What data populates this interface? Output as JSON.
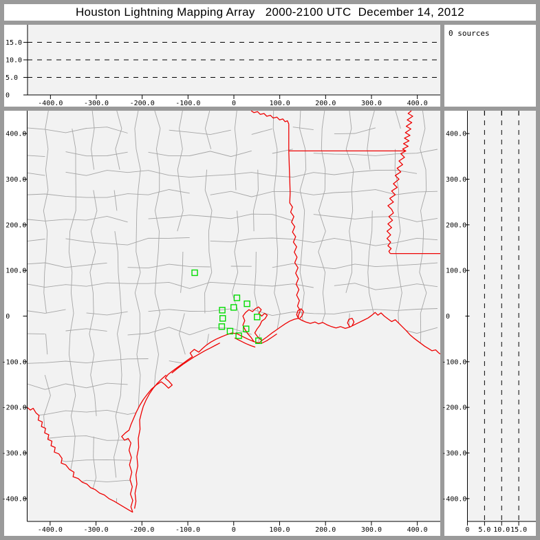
{
  "title": "Houston Lightning Mapping Array   2000-2100 UTC  December 14, 2012",
  "colors": {
    "frame": "#9a9a9a",
    "panel_bg": "#ffffff",
    "plot_bg": "#f2f2f2",
    "axis": "#000000",
    "county_line": "#a5a5a5",
    "state_border": "#ee0000",
    "station": "#00dd00"
  },
  "sources_panel": {
    "label": "0 sources"
  },
  "alt_top_panel": {
    "x_range": [
      -450,
      450
    ],
    "alt_range": [
      0,
      20
    ],
    "dashed_levels": [
      5,
      10,
      15
    ],
    "alt_ticks": {
      "values": [
        0,
        5,
        10,
        15
      ],
      "labels": [
        "0",
        "5.0",
        "10.0",
        "15.0"
      ]
    },
    "x_ticks": {
      "values": [
        -400,
        -300,
        -200,
        -100,
        0,
        100,
        200,
        300,
        400
      ],
      "labels": [
        "-400.0",
        "-300.0",
        "-200.0",
        "-100.0",
        "0",
        "100.0",
        "200.0",
        "300.0",
        "400.0"
      ]
    }
  },
  "alt_right_panel": {
    "alt_range": [
      0,
      20
    ],
    "y_range": [
      -450,
      450
    ],
    "dashed_levels": [
      5,
      10,
      15
    ],
    "alt_ticks": {
      "values": [
        0,
        5,
        10,
        15
      ],
      "labels": [
        "0",
        "5.0",
        "10.0",
        "15.0"
      ]
    },
    "y_ticks": {
      "values": [
        400,
        300,
        200,
        100,
        0,
        -100,
        -200,
        -300,
        -400
      ],
      "labels": [
        "400.0",
        "300.0",
        "200.0",
        "100.0",
        "0",
        "-100.0",
        "-200.0",
        "-300.0",
        "-400.0"
      ]
    }
  },
  "map_panel": {
    "x_range": [
      -450,
      450
    ],
    "y_range": [
      -450,
      450
    ],
    "x_ticks": {
      "values": [
        -400,
        -300,
        -200,
        -100,
        0,
        100,
        200,
        300,
        400
      ],
      "labels": [
        "-400.0",
        "-300.0",
        "-200.0",
        "-100.0",
        "0",
        "100.0",
        "200.0",
        "300.0",
        "400.0"
      ]
    },
    "y_ticks": {
      "values": [
        400,
        300,
        200,
        100,
        0,
        -100,
        -200,
        -300,
        -400
      ],
      "labels": [
        "400.0",
        "300.0",
        "200.0",
        "100.0",
        "0",
        "-100.0",
        "-200.0",
        "-300.0",
        "-400.0"
      ]
    },
    "stations": [
      [
        -85,
        95
      ],
      [
        7,
        40
      ],
      [
        29,
        27
      ],
      [
        0,
        19
      ],
      [
        -25,
        13
      ],
      [
        -24,
        -5
      ],
      [
        51,
        -2
      ],
      [
        -26,
        -23
      ],
      [
        27,
        -28
      ],
      [
        -8,
        -33
      ],
      [
        11,
        -43
      ],
      [
        54,
        -54
      ]
    ],
    "counties": {
      "spacing": 50,
      "step": 45,
      "jitter": 9,
      "skip": 0.13,
      "seed": 20121214
    },
    "geo": {
      "rio_grande": [
        [
          -450,
          -200
        ],
        [
          -443,
          -206
        ],
        [
          -437,
          -202
        ],
        [
          -431,
          -212
        ],
        [
          -424,
          -218
        ],
        [
          -426,
          -228
        ],
        [
          -417,
          -232
        ],
        [
          -419,
          -242
        ],
        [
          -410,
          -246
        ],
        [
          -412,
          -256
        ],
        [
          -403,
          -260
        ],
        [
          -405,
          -270
        ],
        [
          -396,
          -274
        ],
        [
          -398,
          -284
        ],
        [
          -389,
          -288
        ],
        [
          -391,
          -298
        ],
        [
          -381,
          -302
        ],
        [
          -374,
          -312
        ],
        [
          -376,
          -322
        ],
        [
          -366,
          -326
        ],
        [
          -358,
          -336
        ],
        [
          -348,
          -342
        ],
        [
          -350,
          -352
        ],
        [
          -339,
          -356
        ],
        [
          -330,
          -364
        ],
        [
          -320,
          -368
        ],
        [
          -312,
          -376
        ],
        [
          -302,
          -380
        ],
        [
          -292,
          -388
        ],
        [
          -282,
          -392
        ],
        [
          -272,
          -400
        ],
        [
          -260,
          -406
        ],
        [
          -250,
          -412
        ],
        [
          -240,
          -418
        ],
        [
          -230,
          -424
        ],
        [
          -220,
          -430
        ]
      ],
      "gulf_coast": [
        [
          -220,
          -430
        ],
        [
          -224,
          -418
        ],
        [
          -220,
          -404
        ],
        [
          -225,
          -390
        ],
        [
          -221,
          -374
        ],
        [
          -226,
          -358
        ],
        [
          -222,
          -342
        ],
        [
          -227,
          -326
        ],
        [
          -223,
          -310
        ],
        [
          -228,
          -294
        ],
        [
          -224,
          -278
        ],
        [
          -230,
          -268
        ],
        [
          -238,
          -272
        ],
        [
          -244,
          -264
        ],
        [
          -236,
          -256
        ],
        [
          -228,
          -250
        ],
        [
          -224,
          -238
        ],
        [
          -218,
          -224
        ],
        [
          -212,
          -210
        ],
        [
          -205,
          -196
        ],
        [
          -197,
          -183
        ],
        [
          -188,
          -171
        ],
        [
          -179,
          -160
        ],
        [
          -169,
          -151
        ],
        [
          -158,
          -144
        ],
        [
          -150,
          -150
        ],
        [
          -142,
          -158
        ],
        [
          -134,
          -151
        ],
        [
          -141,
          -143
        ],
        [
          -149,
          -136
        ],
        [
          -143,
          -128
        ],
        [
          -133,
          -120
        ],
        [
          -122,
          -112
        ],
        [
          -111,
          -104
        ],
        [
          -100,
          -96
        ],
        [
          -90,
          -89
        ],
        [
          -95,
          -81
        ],
        [
          -86,
          -73
        ],
        [
          -76,
          -79
        ],
        [
          -68,
          -71
        ],
        [
          -60,
          -64
        ],
        [
          -50,
          -57
        ],
        [
          -39,
          -51
        ],
        [
          -28,
          -46
        ],
        [
          -16,
          -41
        ],
        [
          -4,
          -37
        ],
        [
          8,
          -39
        ],
        [
          20,
          -45
        ],
        [
          32,
          -51
        ],
        [
          44,
          -56
        ],
        [
          55,
          -59
        ],
        [
          62,
          -53
        ],
        [
          72,
          -46
        ],
        [
          82,
          -38
        ],
        [
          92,
          -31
        ],
        [
          102,
          -24
        ],
        [
          112,
          -17
        ],
        [
          122,
          -11
        ],
        [
          132,
          -7
        ],
        [
          141,
          -5
        ],
        [
          148,
          -9
        ],
        [
          157,
          -13
        ],
        [
          167,
          -16
        ],
        [
          177,
          -13
        ],
        [
          185,
          -17
        ],
        [
          194,
          -14
        ],
        [
          203,
          -19
        ],
        [
          213,
          -23
        ],
        [
          223,
          -26
        ],
        [
          233,
          -23
        ],
        [
          243,
          -27
        ],
        [
          253,
          -24
        ],
        [
          263,
          -19
        ],
        [
          273,
          -14
        ],
        [
          283,
          -9
        ],
        [
          293,
          -4
        ],
        [
          301,
          2
        ],
        [
          308,
          8
        ],
        [
          314,
          2
        ],
        [
          321,
          7
        ],
        [
          328,
          0
        ],
        [
          336,
          -6
        ],
        [
          344,
          -12
        ],
        [
          352,
          -8
        ],
        [
          360,
          -16
        ],
        [
          368,
          -24
        ],
        [
          376,
          -32
        ],
        [
          384,
          -41
        ],
        [
          392,
          -48
        ],
        [
          400,
          -54
        ],
        [
          408,
          -60
        ],
        [
          416,
          -66
        ],
        [
          424,
          -71
        ],
        [
          432,
          -76
        ],
        [
          440,
          -74
        ],
        [
          446,
          -80
        ],
        [
          450,
          -83
        ]
      ],
      "red_river": [
        [
          38,
          450
        ],
        [
          44,
          446
        ],
        [
          52,
          448
        ],
        [
          58,
          442
        ],
        [
          66,
          444
        ],
        [
          72,
          438
        ],
        [
          80,
          440
        ],
        [
          86,
          434
        ],
        [
          94,
          436
        ],
        [
          100,
          430
        ],
        [
          107,
          432
        ],
        [
          112,
          426
        ],
        [
          117,
          428
        ],
        [
          120,
          421
        ]
      ],
      "texas_arkansas_border": [
        [
          120,
          421
        ],
        [
          120,
          362
        ]
      ],
      "state_line_33n": [
        [
          120,
          362
        ],
        [
          375,
          362
        ]
      ],
      "sabine_river": [
        [
          120,
          362
        ],
        [
          121,
          330
        ],
        [
          122,
          300
        ],
        [
          123,
          270
        ],
        [
          122,
          248
        ],
        [
          128,
          239
        ],
        [
          124,
          228
        ],
        [
          131,
          218
        ],
        [
          126,
          206
        ],
        [
          133,
          196
        ],
        [
          128,
          184
        ],
        [
          135,
          174
        ],
        [
          130,
          162
        ],
        [
          137,
          152
        ],
        [
          132,
          140
        ],
        [
          138,
          129
        ],
        [
          133,
          117
        ],
        [
          140,
          106
        ],
        [
          135,
          94
        ],
        [
          141,
          82
        ],
        [
          136,
          70
        ],
        [
          142,
          58
        ],
        [
          137,
          46
        ],
        [
          143,
          34
        ],
        [
          139,
          22
        ],
        [
          145,
          12
        ],
        [
          141,
          2
        ],
        [
          141,
          -5
        ]
      ],
      "mississippi_river": [
        [
          387,
          450
        ],
        [
          380,
          444
        ],
        [
          390,
          438
        ],
        [
          378,
          430
        ],
        [
          388,
          424
        ],
        [
          376,
          416
        ],
        [
          386,
          410
        ],
        [
          374,
          402
        ],
        [
          384,
          396
        ],
        [
          372,
          390
        ],
        [
          382,
          384
        ],
        [
          370,
          378
        ],
        [
          380,
          372
        ],
        [
          368,
          366
        ],
        [
          375,
          362
        ],
        [
          364,
          356
        ],
        [
          372,
          348
        ],
        [
          360,
          340
        ],
        [
          368,
          332
        ],
        [
          356,
          324
        ],
        [
          364,
          316
        ],
        [
          352,
          308
        ],
        [
          360,
          300
        ],
        [
          348,
          290
        ],
        [
          356,
          282
        ],
        [
          344,
          274
        ],
        [
          352,
          266
        ],
        [
          340,
          258
        ],
        [
          348,
          250
        ],
        [
          336,
          242
        ],
        [
          344,
          234
        ],
        [
          348,
          226
        ],
        [
          338,
          218
        ],
        [
          346,
          210
        ],
        [
          336,
          202
        ],
        [
          344,
          194
        ],
        [
          334,
          186
        ],
        [
          342,
          178
        ],
        [
          334,
          170
        ],
        [
          342,
          162
        ],
        [
          336,
          154
        ],
        [
          343,
          148
        ],
        [
          338,
          142
        ],
        [
          341,
          137
        ]
      ],
      "state_line_31n": [
        [
          341,
          137
        ],
        [
          450,
          137
        ]
      ],
      "galveston_bay": [
        [
          44,
          -56
        ],
        [
          38,
          -47
        ],
        [
          31,
          -39
        ],
        [
          25,
          -30
        ],
        [
          20,
          -20
        ],
        [
          24,
          -10
        ],
        [
          20,
          0
        ],
        [
          26,
          8
        ],
        [
          33,
          14
        ],
        [
          41,
          10
        ],
        [
          47,
          16
        ],
        [
          54,
          20
        ],
        [
          60,
          14
        ],
        [
          55,
          6
        ],
        [
          61,
          0
        ],
        [
          67,
          6
        ],
        [
          73,
          2
        ],
        [
          68,
          -6
        ],
        [
          61,
          -11
        ],
        [
          57,
          -20
        ],
        [
          51,
          -28
        ],
        [
          46,
          -37
        ],
        [
          52,
          -45
        ],
        [
          58,
          -51
        ],
        [
          62,
          -53
        ]
      ],
      "sabine_lake": [
        [
          141,
          -5
        ],
        [
          137,
          3
        ],
        [
          140,
          12
        ],
        [
          147,
          16
        ],
        [
          152,
          10
        ],
        [
          149,
          1
        ],
        [
          144,
          -5
        ]
      ],
      "calcasieu_lake": [
        [
          253,
          -24
        ],
        [
          248,
          -15
        ],
        [
          251,
          -7
        ],
        [
          258,
          -5
        ],
        [
          262,
          -13
        ],
        [
          258,
          -21
        ]
      ],
      "padre_island": [
        [
          -216,
          -422
        ],
        [
          -213,
          -406
        ],
        [
          -215,
          -388
        ],
        [
          -211,
          -368
        ],
        [
          -213,
          -348
        ],
        [
          -209,
          -328
        ],
        [
          -211,
          -308
        ],
        [
          -207,
          -288
        ],
        [
          -208,
          -268
        ],
        [
          -204,
          -248
        ],
        [
          -205,
          -228
        ],
        [
          -201,
          -212
        ],
        [
          -197,
          -198
        ],
        [
          -191,
          -184
        ],
        [
          -184,
          -171
        ],
        [
          -176,
          -159
        ],
        [
          -167,
          -148
        ],
        [
          -157,
          -138
        ],
        [
          -147,
          -129
        ]
      ],
      "matagorda_island": [
        [
          -135,
          -125
        ],
        [
          -123,
          -115
        ],
        [
          -111,
          -106
        ],
        [
          -99,
          -98
        ],
        [
          -87,
          -90
        ],
        [
          -75,
          -83
        ],
        [
          -63,
          -76
        ],
        [
          -51,
          -70
        ],
        [
          -40,
          -64
        ],
        [
          -30,
          -59
        ]
      ],
      "galveston_island": [
        [
          2,
          -48
        ],
        [
          14,
          -54
        ],
        [
          26,
          -60
        ],
        [
          38,
          -65
        ],
        [
          47,
          -68
        ]
      ],
      "bolivar_peninsula": [
        [
          60,
          -60
        ],
        [
          72,
          -54
        ],
        [
          84,
          -46
        ],
        [
          94,
          -39
        ]
      ]
    }
  }
}
